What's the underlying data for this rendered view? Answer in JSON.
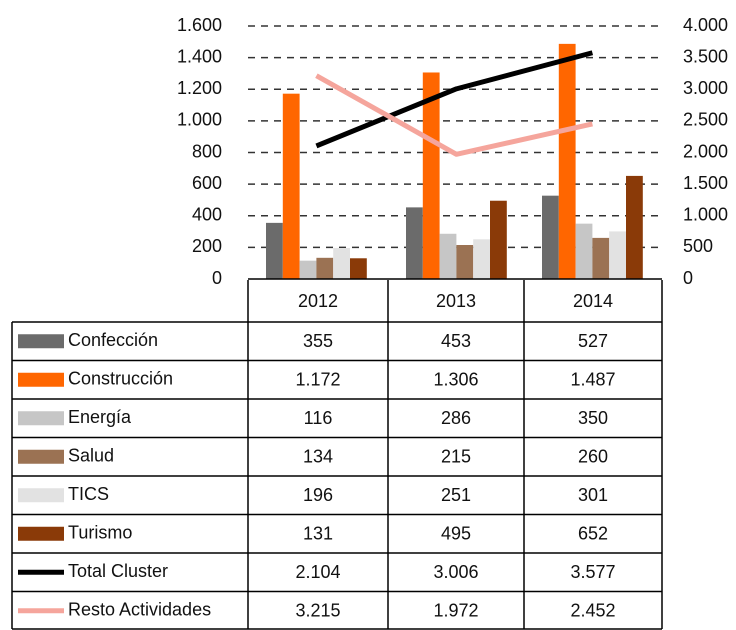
{
  "chart_data": {
    "type": "bar",
    "categories": [
      "2012",
      "2013",
      "2014"
    ],
    "series": [
      {
        "name": "Confección",
        "color": "#6b6b6b",
        "values": [
          355,
          453,
          527
        ]
      },
      {
        "name": "Construcción",
        "color": "#ff6600",
        "values": [
          1172,
          1306,
          1487
        ],
        "value_labels": [
          "1.172",
          "1.306",
          "1.487"
        ]
      },
      {
        "name": "Energía",
        "color": "#c6c6c6",
        "values": [
          116,
          286,
          350
        ]
      },
      {
        "name": "Salud",
        "color": "#9b7253",
        "values": [
          134,
          215,
          260
        ]
      },
      {
        "name": "TICS",
        "color": "#e2e2e2",
        "values": [
          196,
          251,
          301
        ]
      },
      {
        "name": "Turismo",
        "color": "#8a3a08",
        "values": [
          131,
          495,
          652
        ]
      },
      {
        "name": "Total Cluster",
        "color": "#000000",
        "type": "line",
        "axis": "y2",
        "values": [
          2104,
          3006,
          3577
        ],
        "value_labels": [
          "2.104",
          "3.006",
          "3.577"
        ]
      },
      {
        "name": "Resto Actividades",
        "color": "#f5a59c",
        "type": "line",
        "axis": "y2",
        "values": [
          3215,
          1972,
          2452
        ],
        "value_labels": [
          "3.215",
          "1.972",
          "2.452"
        ]
      }
    ],
    "ylim": [
      0,
      1600
    ],
    "yticks": [
      0,
      200,
      400,
      600,
      800,
      {
        "value": 1000,
        "label": "1.000"
      },
      {
        "value": 1200,
        "label": "1.200"
      },
      {
        "value": 1400,
        "label": "1.400"
      },
      {
        "value": 1600,
        "label": "1.600"
      }
    ],
    "y2lim": [
      0,
      4000
    ],
    "y2ticks": [
      0,
      500,
      {
        "value": 1000,
        "label": "1.000"
      },
      {
        "value": 1500,
        "label": "1.500"
      },
      {
        "value": 2000,
        "label": "2.000"
      },
      {
        "value": 2500,
        "label": "2.500"
      },
      {
        "value": 3000,
        "label": "3.000"
      },
      {
        "value": 3500,
        "label": "3.500"
      },
      {
        "value": 4000,
        "label": "4.000"
      }
    ],
    "grid": true
  }
}
